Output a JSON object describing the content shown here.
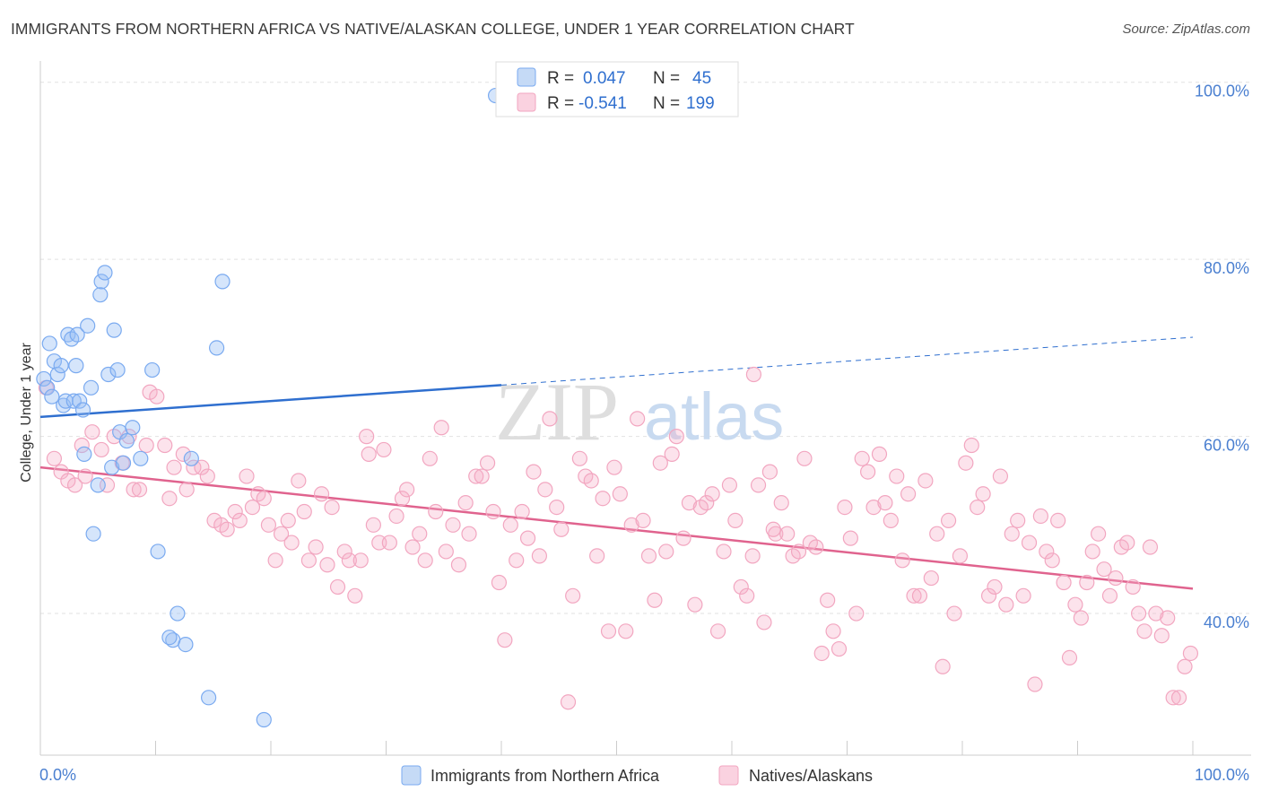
{
  "title": "IMMIGRANTS FROM NORTHERN AFRICA VS NATIVE/ALASKAN COLLEGE, UNDER 1 YEAR CORRELATION CHART",
  "source": "Source: ZipAtlas.com",
  "watermark": {
    "zip": "ZIP",
    "atlas": "atlas"
  },
  "chart_data": {
    "type": "scatter",
    "xlabel": "",
    "ylabel": "College, Under 1 year",
    "xlim": [
      0,
      100
    ],
    "ylim": [
      24,
      102
    ],
    "x_tick_labels": [
      "0.0%",
      "100.0%"
    ],
    "y_ticks": [
      40,
      60,
      80,
      100
    ],
    "y_tick_labels": [
      "40.0%",
      "60.0%",
      "80.0%",
      "100.0%"
    ],
    "grid": true,
    "legend_top": {
      "r_label": "R =",
      "n_label": "N =",
      "entries": [
        {
          "r": "0.047",
          "n": "45"
        },
        {
          "r": "-0.541",
          "n": "199"
        }
      ]
    },
    "series": [
      {
        "name": "Immigrants from Northern Africa",
        "color": "#7aaaf0",
        "line_color": "#2f6fcf",
        "trend": {
          "x0": 0,
          "y0": 62.2,
          "x1": 40,
          "y1": 65.8,
          "x_ext": 100,
          "y_ext": 71.2
        },
        "points": [
          [
            39.5,
            98.5
          ],
          [
            0.3,
            66.5
          ],
          [
            0.8,
            70.5
          ],
          [
            1.2,
            68.5
          ],
          [
            1.5,
            67.0
          ],
          [
            1.8,
            68.0
          ],
          [
            2.0,
            63.5
          ],
          [
            2.2,
            64.0
          ],
          [
            2.4,
            71.5
          ],
          [
            2.7,
            71.0
          ],
          [
            2.9,
            64.0
          ],
          [
            3.1,
            68.0
          ],
          [
            3.2,
            71.5
          ],
          [
            3.4,
            64.0
          ],
          [
            3.7,
            63.0
          ],
          [
            3.8,
            58.0
          ],
          [
            4.1,
            72.5
          ],
          [
            4.4,
            65.5
          ],
          [
            5.0,
            54.5
          ],
          [
            5.2,
            76.0
          ],
          [
            5.3,
            77.5
          ],
          [
            5.6,
            78.5
          ],
          [
            5.9,
            67.0
          ],
          [
            6.2,
            56.5
          ],
          [
            6.4,
            72.0
          ],
          [
            6.7,
            67.5
          ],
          [
            6.9,
            60.5
          ],
          [
            7.2,
            57.0
          ],
          [
            7.5,
            59.5
          ],
          [
            8.0,
            61.0
          ],
          [
            8.7,
            57.5
          ],
          [
            9.7,
            67.5
          ],
          [
            10.2,
            47.0
          ],
          [
            11.5,
            37.0
          ],
          [
            11.2,
            37.3
          ],
          [
            11.9,
            40.0
          ],
          [
            12.6,
            36.5
          ],
          [
            13.1,
            57.5
          ],
          [
            14.6,
            30.5
          ],
          [
            15.3,
            70.0
          ],
          [
            15.8,
            77.5
          ],
          [
            0.6,
            65.5
          ],
          [
            1.0,
            64.5
          ],
          [
            4.6,
            49.0
          ],
          [
            19.4,
            28.0
          ]
        ]
      },
      {
        "name": "Natives/Alaskans",
        "color": "#f2a6c0",
        "line_color": "#e0638e",
        "trend": {
          "x0": 0,
          "y0": 56.5,
          "x1": 100,
          "y1": 42.8
        },
        "points": [
          [
            0.5,
            65.5
          ],
          [
            1.2,
            57.5
          ],
          [
            1.8,
            56.0
          ],
          [
            2.4,
            55.0
          ],
          [
            3.0,
            54.5
          ],
          [
            3.6,
            59.0
          ],
          [
            3.9,
            55.5
          ],
          [
            4.5,
            60.5
          ],
          [
            5.3,
            58.5
          ],
          [
            5.8,
            54.5
          ],
          [
            6.4,
            60.0
          ],
          [
            7.1,
            57.0
          ],
          [
            7.7,
            60.0
          ],
          [
            8.1,
            54.0
          ],
          [
            8.6,
            54.0
          ],
          [
            9.2,
            59.0
          ],
          [
            9.5,
            65.0
          ],
          [
            10.1,
            64.5
          ],
          [
            10.8,
            59.0
          ],
          [
            11.2,
            53.0
          ],
          [
            11.6,
            56.5
          ],
          [
            12.4,
            58.0
          ],
          [
            12.7,
            54.0
          ],
          [
            13.3,
            56.5
          ],
          [
            14.0,
            56.5
          ],
          [
            14.5,
            55.5
          ],
          [
            15.1,
            50.5
          ],
          [
            15.7,
            50.0
          ],
          [
            16.2,
            49.5
          ],
          [
            16.9,
            51.5
          ],
          [
            17.3,
            50.5
          ],
          [
            17.9,
            55.5
          ],
          [
            18.4,
            52.0
          ],
          [
            18.9,
            53.5
          ],
          [
            19.4,
            53.0
          ],
          [
            19.8,
            50.0
          ],
          [
            20.4,
            46.0
          ],
          [
            20.9,
            49.0
          ],
          [
            21.5,
            50.5
          ],
          [
            21.8,
            48.0
          ],
          [
            22.4,
            55.0
          ],
          [
            22.9,
            51.5
          ],
          [
            23.3,
            46.0
          ],
          [
            23.9,
            47.5
          ],
          [
            24.4,
            53.5
          ],
          [
            24.9,
            45.5
          ],
          [
            25.3,
            52.0
          ],
          [
            25.8,
            43.0
          ],
          [
            26.4,
            47.0
          ],
          [
            26.8,
            46.0
          ],
          [
            27.3,
            42.0
          ],
          [
            27.8,
            46.0
          ],
          [
            28.3,
            60.0
          ],
          [
            28.5,
            58.0
          ],
          [
            28.9,
            50.0
          ],
          [
            29.4,
            48.0
          ],
          [
            29.8,
            58.5
          ],
          [
            30.3,
            48.0
          ],
          [
            30.9,
            51.0
          ],
          [
            31.4,
            53.0
          ],
          [
            31.8,
            54.0
          ],
          [
            32.3,
            47.5
          ],
          [
            32.9,
            49.0
          ],
          [
            33.4,
            46.0
          ],
          [
            33.8,
            57.5
          ],
          [
            34.3,
            51.5
          ],
          [
            34.8,
            61.0
          ],
          [
            35.2,
            47.0
          ],
          [
            35.8,
            50.0
          ],
          [
            36.3,
            45.5
          ],
          [
            36.9,
            52.5
          ],
          [
            37.2,
            49.0
          ],
          [
            37.8,
            55.5
          ],
          [
            38.3,
            55.5
          ],
          [
            38.8,
            57.0
          ],
          [
            39.3,
            51.5
          ],
          [
            39.8,
            43.5
          ],
          [
            40.3,
            37.0
          ],
          [
            40.8,
            50.0
          ],
          [
            41.3,
            46.0
          ],
          [
            41.8,
            51.5
          ],
          [
            42.3,
            48.5
          ],
          [
            42.8,
            56.0
          ],
          [
            43.3,
            46.5
          ],
          [
            43.8,
            54.0
          ],
          [
            44.2,
            62.0
          ],
          [
            44.8,
            52.0
          ],
          [
            45.2,
            49.5
          ],
          [
            45.8,
            30.0
          ],
          [
            46.2,
            42.0
          ],
          [
            46.8,
            57.5
          ],
          [
            47.3,
            55.5
          ],
          [
            47.8,
            55.0
          ],
          [
            48.3,
            46.5
          ],
          [
            48.8,
            53.0
          ],
          [
            49.3,
            38.0
          ],
          [
            49.8,
            56.5
          ],
          [
            50.3,
            53.5
          ],
          [
            50.8,
            38.0
          ],
          [
            51.3,
            50.0
          ],
          [
            51.8,
            62.0
          ],
          [
            52.3,
            50.5
          ],
          [
            52.8,
            46.5
          ],
          [
            53.3,
            41.5
          ],
          [
            53.8,
            57.0
          ],
          [
            54.3,
            47.0
          ],
          [
            54.8,
            58.0
          ],
          [
            55.2,
            60.0
          ],
          [
            55.8,
            48.5
          ],
          [
            56.3,
            52.5
          ],
          [
            56.8,
            41.0
          ],
          [
            57.3,
            52.0
          ],
          [
            57.8,
            52.5
          ],
          [
            58.3,
            53.5
          ],
          [
            58.8,
            38.0
          ],
          [
            59.3,
            47.0
          ],
          [
            59.8,
            54.5
          ],
          [
            60.3,
            50.5
          ],
          [
            60.8,
            43.0
          ],
          [
            61.3,
            42.0
          ],
          [
            61.8,
            46.5
          ],
          [
            62.3,
            54.5
          ],
          [
            62.8,
            39.0
          ],
          [
            63.3,
            56.0
          ],
          [
            63.8,
            49.0
          ],
          [
            64.3,
            52.5
          ],
          [
            64.8,
            49.0
          ],
          [
            65.3,
            46.5
          ],
          [
            65.8,
            47.0
          ],
          [
            66.3,
            57.5
          ],
          [
            66.8,
            48.0
          ],
          [
            67.3,
            47.5
          ],
          [
            67.8,
            35.5
          ],
          [
            68.3,
            41.5
          ],
          [
            68.8,
            38.0
          ],
          [
            69.3,
            36.0
          ],
          [
            69.8,
            52.0
          ],
          [
            70.3,
            48.5
          ],
          [
            70.8,
            40.0
          ],
          [
            71.3,
            57.5
          ],
          [
            71.8,
            56.0
          ],
          [
            72.3,
            52.0
          ],
          [
            72.8,
            58.0
          ],
          [
            73.3,
            52.5
          ],
          [
            73.8,
            50.5
          ],
          [
            74.3,
            55.5
          ],
          [
            74.8,
            46.0
          ],
          [
            75.3,
            53.5
          ],
          [
            75.8,
            42.0
          ],
          [
            76.3,
            42.0
          ],
          [
            76.8,
            55.0
          ],
          [
            77.3,
            44.0
          ],
          [
            77.8,
            49.0
          ],
          [
            78.3,
            34.0
          ],
          [
            78.8,
            50.5
          ],
          [
            79.3,
            40.0
          ],
          [
            79.8,
            46.5
          ],
          [
            80.3,
            57.0
          ],
          [
            80.8,
            59.0
          ],
          [
            81.3,
            52.0
          ],
          [
            81.8,
            53.5
          ],
          [
            82.3,
            42.0
          ],
          [
            82.8,
            43.0
          ],
          [
            83.3,
            55.5
          ],
          [
            83.8,
            41.0
          ],
          [
            84.3,
            49.0
          ],
          [
            84.8,
            50.5
          ],
          [
            85.3,
            42.0
          ],
          [
            85.8,
            48.0
          ],
          [
            86.3,
            32.0
          ],
          [
            86.8,
            51.0
          ],
          [
            87.3,
            47.0
          ],
          [
            87.8,
            46.0
          ],
          [
            88.3,
            50.5
          ],
          [
            88.8,
            43.5
          ],
          [
            89.3,
            35.0
          ],
          [
            89.8,
            41.0
          ],
          [
            90.3,
            39.5
          ],
          [
            90.8,
            43.5
          ],
          [
            91.3,
            47.0
          ],
          [
            91.8,
            49.0
          ],
          [
            92.3,
            45.0
          ],
          [
            92.8,
            42.0
          ],
          [
            93.3,
            44.0
          ],
          [
            93.8,
            47.5
          ],
          [
            94.3,
            48.0
          ],
          [
            94.8,
            43.0
          ],
          [
            95.3,
            40.0
          ],
          [
            95.8,
            38.0
          ],
          [
            96.3,
            47.5
          ],
          [
            96.8,
            40.0
          ],
          [
            97.3,
            37.5
          ],
          [
            97.8,
            39.5
          ],
          [
            98.3,
            30.5
          ],
          [
            98.8,
            30.5
          ],
          [
            99.3,
            34.0
          ],
          [
            99.8,
            35.5
          ],
          [
            61.9,
            67.0
          ],
          [
            63.6,
            49.5
          ]
        ]
      }
    ]
  }
}
